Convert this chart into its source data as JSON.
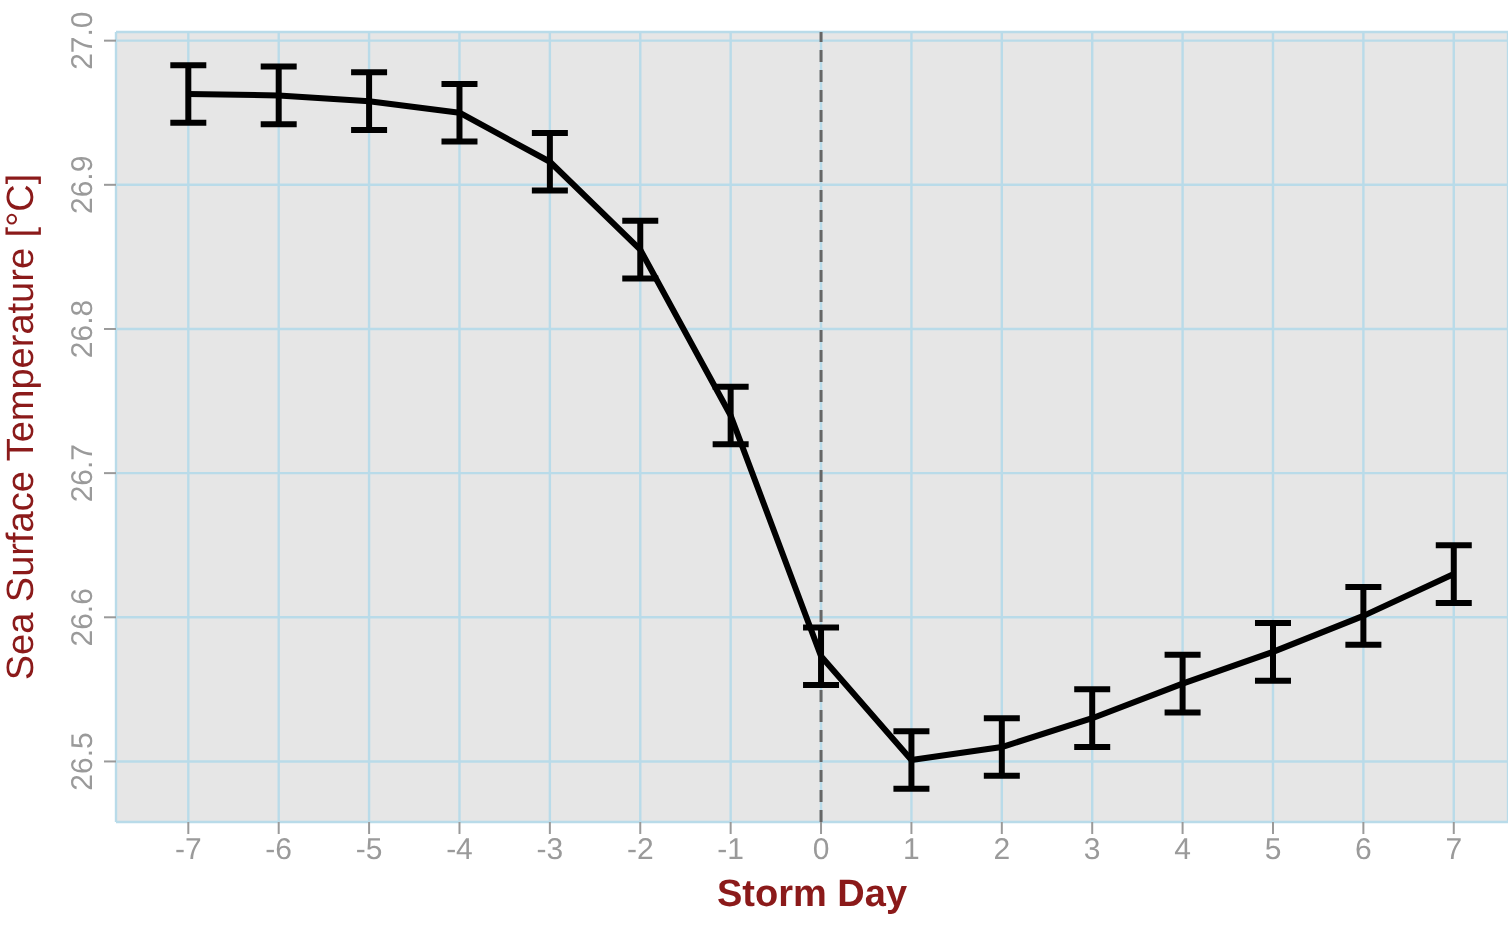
{
  "chart_data": {
    "type": "line",
    "xlabel": "Storm Day",
    "ylabel": "Sea Surface Temperature [°C]",
    "x": [
      -7,
      -6,
      -5,
      -4,
      -3,
      -2,
      -1,
      0,
      1,
      2,
      3,
      4,
      5,
      6,
      7
    ],
    "values": [
      26.963,
      26.962,
      26.958,
      26.95,
      26.916,
      26.855,
      26.74,
      26.573,
      26.501,
      26.51,
      26.53,
      26.554,
      26.576,
      26.601,
      26.63
    ],
    "errors": [
      0.02,
      0.02,
      0.02,
      0.02,
      0.02,
      0.02,
      0.02,
      0.02,
      0.02,
      0.02,
      0.02,
      0.02,
      0.02,
      0.02,
      0.02
    ],
    "color": "#000000",
    "xlim": [
      -7.8,
      7.6
    ],
    "xticks": [
      -7,
      -6,
      -5,
      -4,
      -3,
      -2,
      -1,
      0,
      1,
      2,
      3,
      4,
      5,
      6,
      7
    ],
    "ylim": [
      26.458,
      27.006
    ],
    "yticks": [
      26.5,
      26.6,
      26.7,
      26.8,
      26.9,
      {
        "value": 27.0,
        "label": "27.0"
      }
    ],
    "ref_lines": [
      {
        "axis": "x",
        "value": 0,
        "color": "#666666",
        "line_style": "dashed"
      }
    ],
    "grid": true,
    "marker": "none",
    "line_style": "solid"
  }
}
